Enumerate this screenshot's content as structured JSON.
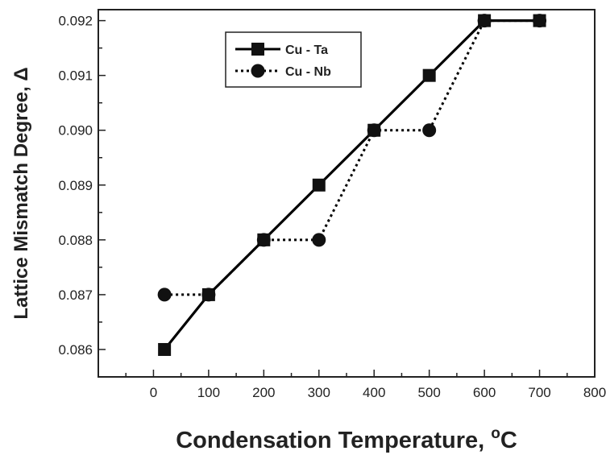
{
  "chart_data": {
    "type": "line",
    "title": "",
    "xlabel": "Condensation Temperature, ",
    "xlabel_sup": "o",
    "xlabel_unit": "C",
    "ylabel": "Lattice Mismatch Degree, Δ",
    "xlim": [
      -100,
      800
    ],
    "ylim": [
      0.0855,
      0.0922
    ],
    "x_ticks": [
      0,
      100,
      200,
      300,
      400,
      500,
      600,
      700,
      800
    ],
    "x_tick_labels": [
      "0",
      "100",
      "200",
      "300",
      "400",
      "500",
      "600",
      "700",
      "800"
    ],
    "y_ticks": [
      0.086,
      0.087,
      0.088,
      0.089,
      0.09,
      0.091,
      0.092
    ],
    "y_tick_labels": [
      "0.086",
      "0.087",
      "0.088",
      "0.089",
      "0.090",
      "0.091",
      "0.092"
    ],
    "grid": false,
    "legend_position": "top-left",
    "series": [
      {
        "name": "Cu - Ta",
        "marker": "square",
        "line_style": "solid",
        "color": "#000000",
        "x": [
          20,
          100,
          200,
          300,
          400,
          500,
          600,
          700
        ],
        "y": [
          0.086,
          0.087,
          0.088,
          0.089,
          0.09,
          0.091,
          0.092,
          0.092
        ]
      },
      {
        "name": "Cu - Nb",
        "marker": "circle",
        "line_style": "dotted",
        "color": "#000000",
        "x": [
          20,
          100,
          200,
          300,
          400,
          500,
          600,
          700
        ],
        "y": [
          0.087,
          0.087,
          0.088,
          0.088,
          0.09,
          0.09,
          0.092,
          0.092
        ]
      }
    ]
  }
}
